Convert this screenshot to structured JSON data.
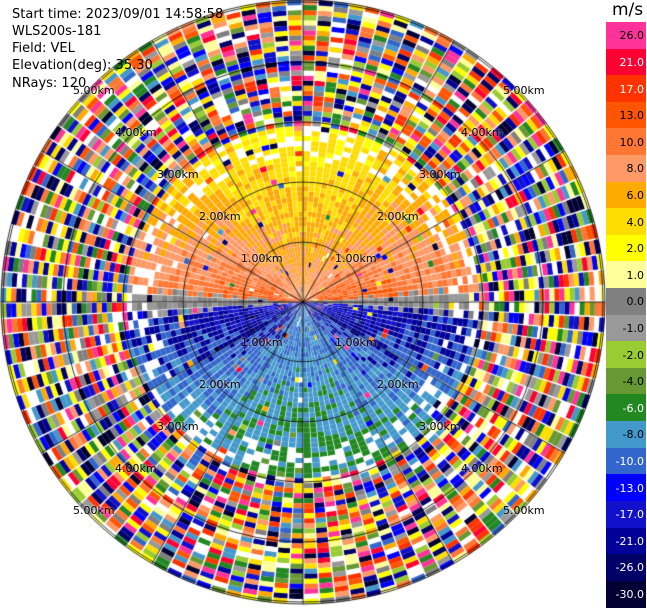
{
  "header": {
    "start_time": "Start time: 2023/09/01 14:58:58",
    "instrument": "WLS200s-181",
    "field": "Field: VEL",
    "elevation": "Elevation(deg): 35.30",
    "nrays": "NRays: 120"
  },
  "colorbar": {
    "unit": "m/s",
    "levels": [
      {
        "label": "26.0",
        "color": "#ff3399"
      },
      {
        "label": "21.0",
        "color": "#ff0033"
      },
      {
        "label": "17.0",
        "color": "#ff3300"
      },
      {
        "label": "13.0",
        "color": "#ff5500"
      },
      {
        "label": "10.0",
        "color": "#ff7733"
      },
      {
        "label": "8.0",
        "color": "#ff9966"
      },
      {
        "label": "6.0",
        "color": "#ffaa00"
      },
      {
        "label": "4.0",
        "color": "#ffdd00"
      },
      {
        "label": "2.0",
        "color": "#ffff00"
      },
      {
        "label": "1.0",
        "color": "#ffff99"
      },
      {
        "label": "0.0",
        "color": "#808080"
      },
      {
        "label": "-1.0",
        "color": "#999999"
      },
      {
        "label": "-2.0",
        "color": "#99cc33"
      },
      {
        "label": "-4.0",
        "color": "#669933"
      },
      {
        "label": "-6.0",
        "color": "#228822"
      },
      {
        "label": "-8.0",
        "color": "#4499cc"
      },
      {
        "label": "-10.0",
        "color": "#3366cc"
      },
      {
        "label": "-13.0",
        "color": "#0000ff"
      },
      {
        "label": "-17.0",
        "color": "#1111cc"
      },
      {
        "label": "-21.0",
        "color": "#000099"
      },
      {
        "label": "-26.0",
        "color": "#000066"
      },
      {
        "label": "-30.0",
        "color": "#000033"
      }
    ]
  },
  "range_rings": {
    "labels": [
      "1.00km",
      "2.00km",
      "3.00km",
      "4.00km",
      "5.00km"
    ]
  }
}
